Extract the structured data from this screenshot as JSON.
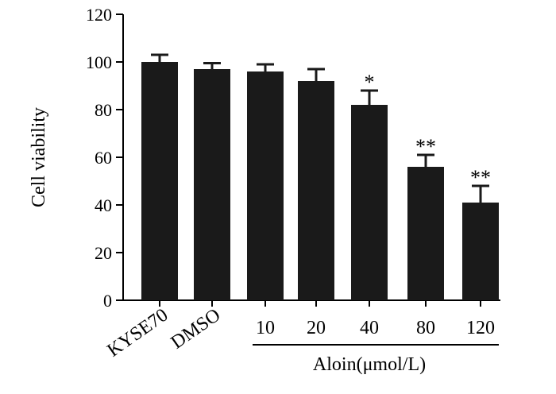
{
  "chart_data": {
    "type": "bar",
    "title": "",
    "ylabel": "Cell viability",
    "xlabel": "",
    "categories": [
      "KYSE70",
      "DMSO",
      "10",
      "20",
      "40",
      "80",
      "120"
    ],
    "values": [
      100,
      97,
      96,
      92,
      82,
      56,
      41
    ],
    "errors": [
      3,
      2.5,
      3,
      5,
      6,
      5,
      7
    ],
    "significance": [
      "",
      "",
      "",
      "",
      "*",
      "**",
      "**"
    ],
    "ylim": [
      0,
      120
    ],
    "yticks": [
      "0",
      "20",
      "40",
      "60",
      "80",
      "100",
      "120"
    ],
    "group_label": "Aloin(μmol/L)",
    "group_categories": [
      "10",
      "20",
      "40",
      "80",
      "120"
    ],
    "rotated_labels": [
      "KYSE70",
      "DMSO"
    ],
    "bar_color": "#1a1a1a",
    "grid": false
  }
}
